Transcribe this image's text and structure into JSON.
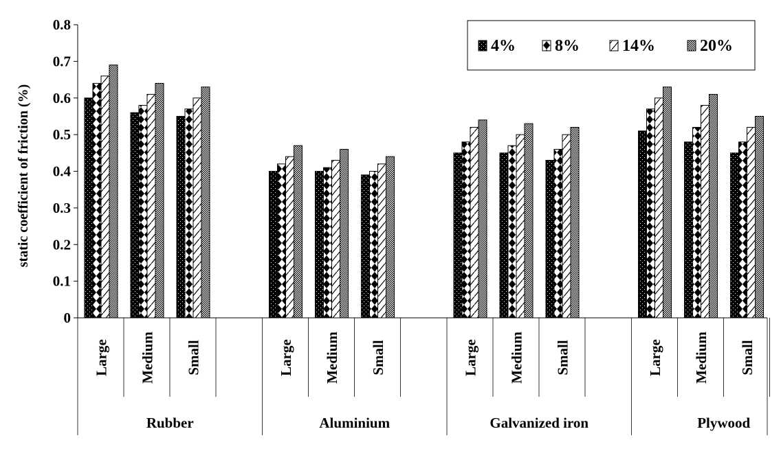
{
  "chart_data": {
    "type": "bar",
    "title": "",
    "xlabel": "",
    "ylabel": "static coefficient of friction (%)",
    "ylim": [
      0,
      0.8
    ],
    "yticks": [
      "0",
      "0.1",
      "0.2",
      "0.3",
      "0.4",
      "0.5",
      "0.6",
      "0.7",
      "0.8"
    ],
    "grid": false,
    "legend_position": "top-right",
    "groups": [
      {
        "name": "Rubber",
        "categories": [
          "Large",
          "Medium",
          "Small"
        ]
      },
      {
        "name": "Aluminium",
        "categories": [
          "Large",
          "Medium",
          "Small"
        ]
      },
      {
        "name": "Galvanized iron",
        "categories": [
          "Large",
          "Medium",
          "Small"
        ]
      },
      {
        "name": "Plywood",
        "categories": [
          "Large",
          "Medium",
          "Small"
        ]
      }
    ],
    "series": [
      {
        "name": "4%",
        "values": [
          0.6,
          0.56,
          0.55,
          0.4,
          0.4,
          0.39,
          0.45,
          0.45,
          0.43,
          0.51,
          0.48,
          0.45
        ]
      },
      {
        "name": "8%",
        "values": [
          0.64,
          0.58,
          0.57,
          0.42,
          0.41,
          0.4,
          0.48,
          0.47,
          0.46,
          0.57,
          0.52,
          0.48
        ]
      },
      {
        "name": "14%",
        "values": [
          0.66,
          0.61,
          0.6,
          0.44,
          0.43,
          0.42,
          0.52,
          0.5,
          0.5,
          0.6,
          0.58,
          0.52
        ]
      },
      {
        "name": "20%",
        "values": [
          0.69,
          0.64,
          0.63,
          0.47,
          0.46,
          0.44,
          0.54,
          0.53,
          0.52,
          0.63,
          0.61,
          0.55
        ]
      }
    ]
  }
}
